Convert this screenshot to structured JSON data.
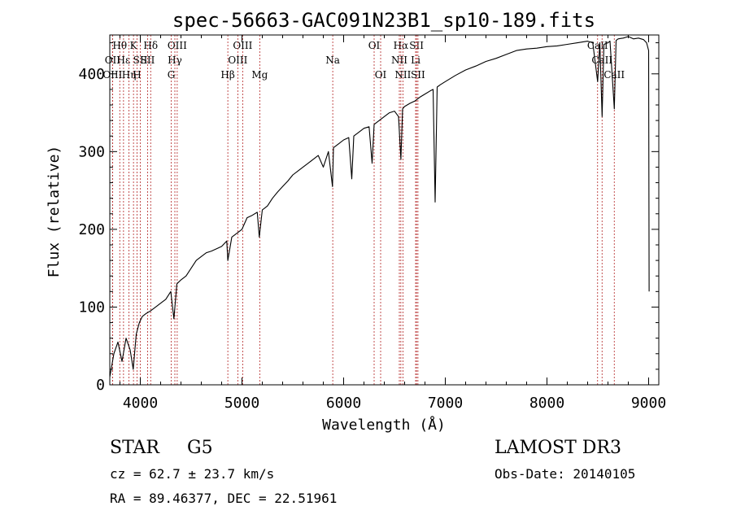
{
  "chart_data": {
    "type": "line",
    "title": "spec-56663-GAC091N23B1_sp10-189.fits",
    "xlabel": "Wavelength (Å)",
    "ylabel": "Flux (relative)",
    "xlim": [
      3700,
      9100
    ],
    "ylim": [
      0,
      450
    ],
    "xticks": [
      4000,
      5000,
      6000,
      7000,
      8000,
      9000
    ],
    "yticks": [
      0,
      100,
      200,
      300,
      400
    ],
    "series": [
      {
        "name": "flux",
        "x": [
          3700,
          3740,
          3780,
          3820,
          3860,
          3900,
          3930,
          3960,
          3990,
          4020,
          4060,
          4100,
          4150,
          4200,
          4250,
          4300,
          4330,
          4360,
          4400,
          4450,
          4500,
          4550,
          4600,
          4650,
          4700,
          4750,
          4800,
          4850,
          4861,
          4900,
          4950,
          5000,
          5050,
          5100,
          5150,
          5170,
          5200,
          5250,
          5300,
          5350,
          5400,
          5450,
          5500,
          5550,
          5600,
          5650,
          5700,
          5750,
          5800,
          5850,
          5890,
          5900,
          5950,
          6000,
          6050,
          6080,
          6100,
          6150,
          6200,
          6250,
          6280,
          6300,
          6350,
          6400,
          6450,
          6500,
          6540,
          6563,
          6580,
          6600,
          6650,
          6700,
          6750,
          6800,
          6850,
          6880,
          6900,
          6920,
          6950,
          7000,
          7100,
          7200,
          7300,
          7400,
          7500,
          7600,
          7700,
          7800,
          7900,
          8000,
          8100,
          8200,
          8300,
          8400,
          8450,
          8498,
          8520,
          8542,
          8560,
          8600,
          8620,
          8662,
          8680,
          8700,
          8750,
          8800,
          8850,
          8900,
          8950,
          8980,
          9000,
          9005
        ],
        "values": [
          10,
          40,
          55,
          30,
          60,
          45,
          20,
          65,
          80,
          88,
          92,
          95,
          100,
          105,
          110,
          120,
          85,
          130,
          135,
          140,
          150,
          160,
          165,
          170,
          172,
          175,
          178,
          185,
          160,
          190,
          195,
          200,
          215,
          218,
          222,
          190,
          225,
          230,
          240,
          248,
          255,
          262,
          270,
          275,
          280,
          285,
          290,
          295,
          280,
          300,
          255,
          305,
          310,
          315,
          318,
          265,
          320,
          325,
          330,
          332,
          285,
          335,
          340,
          345,
          350,
          352,
          345,
          290,
          355,
          358,
          362,
          365,
          370,
          374,
          378,
          380,
          235,
          383,
          386,
          390,
          398,
          405,
          410,
          416,
          420,
          425,
          430,
          432,
          433,
          435,
          436,
          438,
          440,
          442,
          440,
          390,
          440,
          345,
          438,
          440,
          442,
          355,
          443,
          445,
          446,
          448,
          445,
          446,
          444,
          440,
          430,
          120
        ]
      }
    ],
    "line_markers": [
      {
        "label": "Hθ",
        "x": 3798,
        "row": 1
      },
      {
        "label": "OII",
        "x": 3727,
        "row": 2
      },
      {
        "label": "OIII",
        "x": 3727,
        "row": 3
      },
      {
        "label": "Hε",
        "x": 3835,
        "row": 2
      },
      {
        "label": "Hη",
        "x": 3889,
        "row": 3
      },
      {
        "label": "K",
        "x": 3933,
        "row": 1
      },
      {
        "label": "H",
        "x": 3968,
        "row": 3
      },
      {
        "label": "SII",
        "x": 4000,
        "row": 2
      },
      {
        "label": "Hδ",
        "x": 4102,
        "row": 1
      },
      {
        "label": "SII",
        "x": 4072,
        "row": 2
      },
      {
        "label": "OIII",
        "x": 4363,
        "row": 1
      },
      {
        "label": "Hγ",
        "x": 4340,
        "row": 2
      },
      {
        "label": "G",
        "x": 4304,
        "row": 3
      },
      {
        "label": "Hβ",
        "x": 4861,
        "row": 3
      },
      {
        "label": "OIII",
        "x": 5007,
        "row": 1
      },
      {
        "label": "OIII",
        "x": 4959,
        "row": 2
      },
      {
        "label": "Mg",
        "x": 5175,
        "row": 3
      },
      {
        "label": "Na",
        "x": 5893,
        "row": 2
      },
      {
        "label": "OI",
        "x": 6300,
        "row": 1
      },
      {
        "label": "OI",
        "x": 6364,
        "row": 3
      },
      {
        "label": "Hα",
        "x": 6563,
        "row": 1
      },
      {
        "label": "NII",
        "x": 6548,
        "row": 2
      },
      {
        "label": "NII",
        "x": 6583,
        "row": 3
      },
      {
        "label": "SII",
        "x": 6717,
        "row": 1
      },
      {
        "label": "Li",
        "x": 6708,
        "row": 2
      },
      {
        "label": "SII",
        "x": 6731,
        "row": 3
      },
      {
        "label": "CaII",
        "x": 8498,
        "row": 1
      },
      {
        "label": "CaII",
        "x": 8542,
        "row": 2
      },
      {
        "label": "CaII",
        "x": 8662,
        "row": 3
      }
    ]
  },
  "info": {
    "class_label": "STAR",
    "subclass": "G5",
    "cz": "cz = 62.7 ± 23.7 km/s",
    "coords": "RA =  89.46377, DEC =  22.51961",
    "survey": "LAMOST DR3",
    "obs_date": "Obs-Date: 20140105"
  },
  "colors": {
    "line": "#000000",
    "marker": "#b22222",
    "background": "#ffffff"
  }
}
